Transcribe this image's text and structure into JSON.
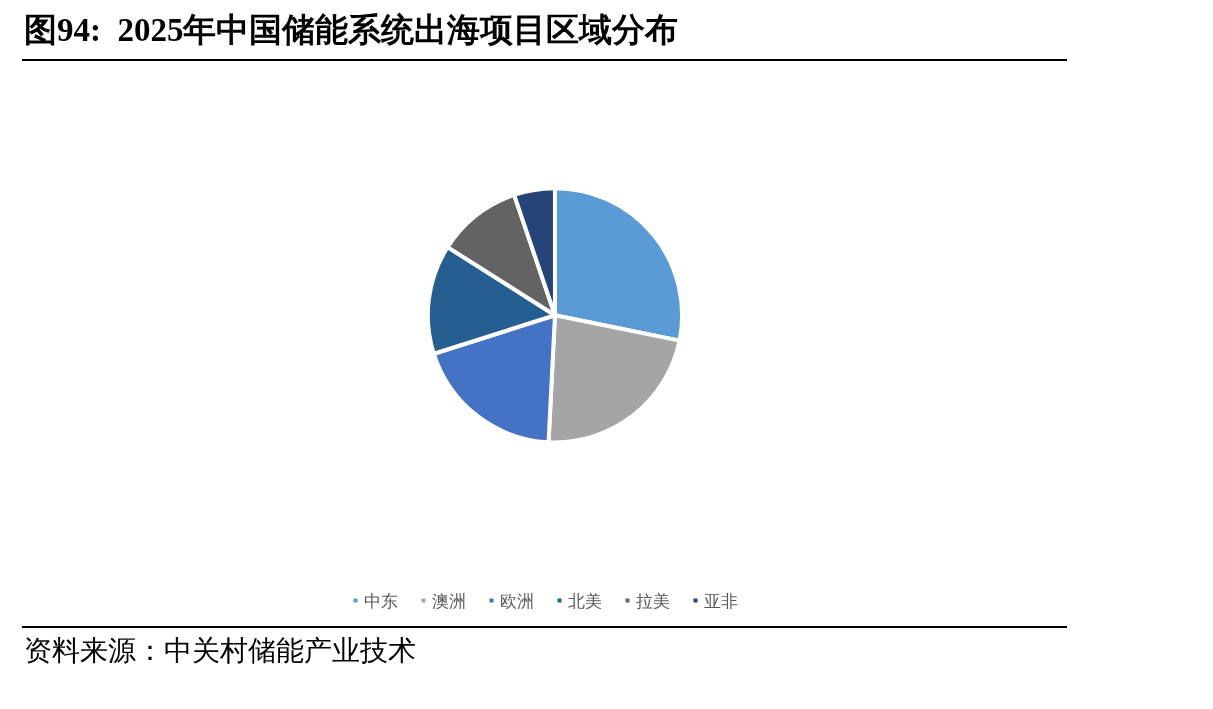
{
  "chart_data": {
    "type": "pie",
    "title": "图94:  2025年中国储能系统出海项目区域分布",
    "categories": [
      "中东",
      "澳洲",
      "欧洲",
      "北美",
      "拉美",
      "亚非"
    ],
    "values": [
      28.2,
      22.6,
      19.3,
      13.9,
      10.8,
      5.2
    ],
    "colors": [
      "#5b9bd5",
      "#a5a5a5",
      "#4472c4",
      "#255e91",
      "#636363",
      "#264478"
    ],
    "legend": "bottom",
    "annotations": [
      "资料来源：中关村储能产业技术"
    ]
  }
}
